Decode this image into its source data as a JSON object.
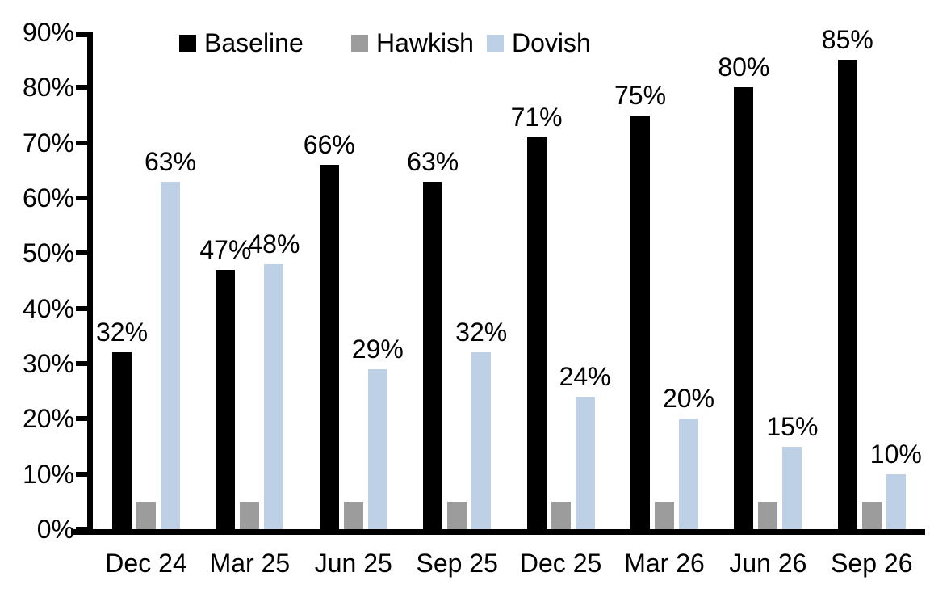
{
  "chart_data": {
    "type": "bar",
    "title": "",
    "xlabel": "",
    "ylabel": "",
    "categories": [
      "Dec 24",
      "Mar 25",
      "Jun 25",
      "Sep 25",
      "Dec 25",
      "Mar 26",
      "Jun 26",
      "Sep 26"
    ],
    "series": [
      {
        "name": "Baseline",
        "color": "#000000",
        "values": [
          32,
          47,
          66,
          63,
          71,
          75,
          80,
          85
        ],
        "show_labels": true
      },
      {
        "name": "Hawkish",
        "color": "#9c9c9c",
        "values": [
          5,
          5,
          5,
          5,
          5,
          5,
          5,
          5
        ],
        "show_labels": false
      },
      {
        "name": "Dovish",
        "color": "#bdd0e6",
        "values": [
          63,
          48,
          29,
          32,
          24,
          20,
          15,
          10
        ],
        "show_labels": true
      }
    ],
    "data_labels": {
      "Baseline": [
        "32%",
        "47%",
        "66%",
        "63%",
        "71%",
        "75%",
        "80%",
        "85%"
      ],
      "Dovish": [
        "63%",
        "48%",
        "29%",
        "32%",
        "24%",
        "20%",
        "15%",
        "10%"
      ]
    },
    "value_suffix": "%",
    "ylim": [
      0,
      90
    ],
    "ytick_step": 10,
    "ytick_labels": [
      "0%",
      "10%",
      "20%",
      "30%",
      "40%",
      "50%",
      "60%",
      "70%",
      "80%",
      "90%"
    ],
    "legend": {
      "position": "top",
      "entries": [
        "Baseline",
        "Hawkish",
        "Dovish"
      ]
    },
    "grid": false,
    "axis_color": "#000000",
    "text_color": "#000000",
    "background_color": "#ffffff"
  }
}
